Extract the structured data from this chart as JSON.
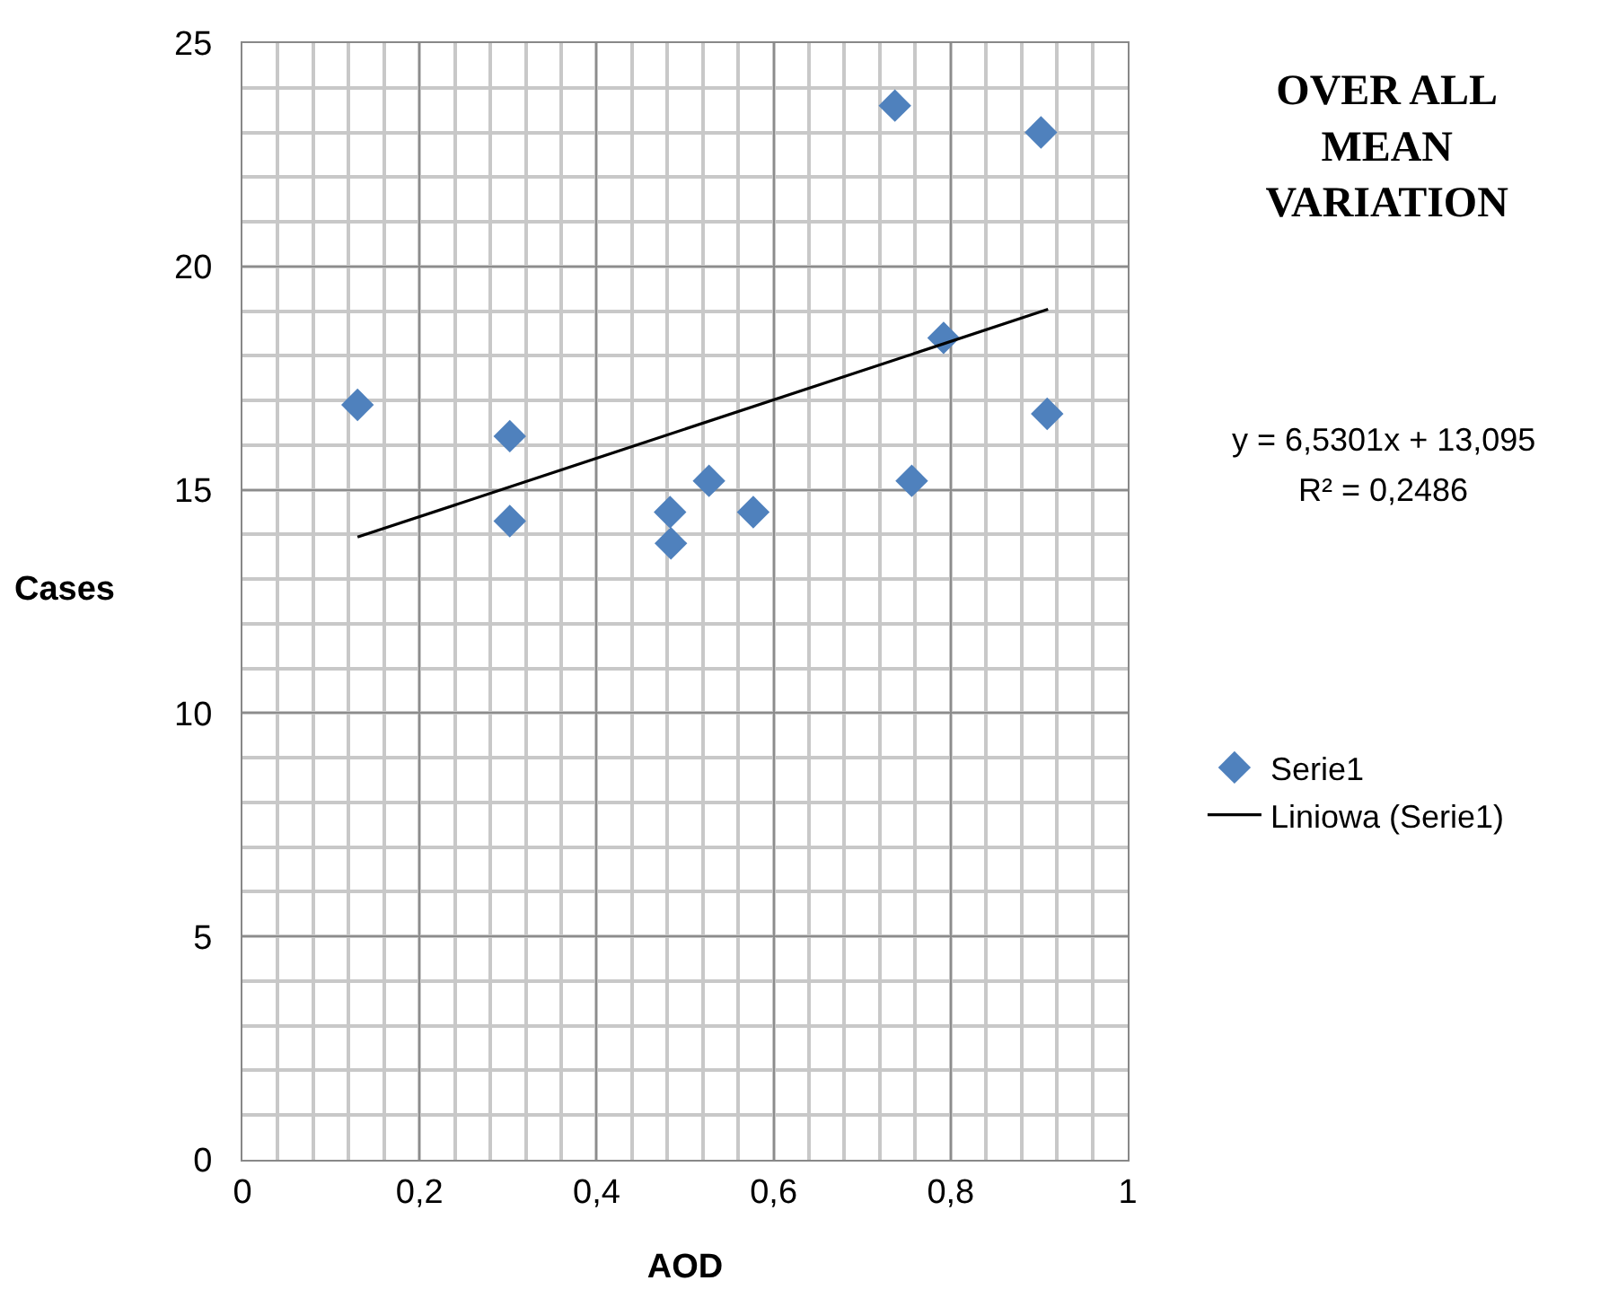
{
  "chart_data": {
    "type": "scatter",
    "title": "OVER ALL\nMEAN\nVARIATION",
    "xlabel": "AOD",
    "ylabel": "Cases",
    "annotations": [
      "y = 6,5301x + 13,095",
      "R² = 0,2486"
    ],
    "series": [
      {
        "name": "Serie1",
        "color": "#4f81bd",
        "marker": "diamond",
        "x": [
          0.13,
          0.302,
          0.302,
          0.483,
          0.484,
          0.527,
          0.577,
          0.737,
          0.902,
          0.792,
          0.909,
          0.756
        ],
        "values": [
          16.9,
          16.2,
          14.3,
          14.5,
          13.8,
          15.2,
          14.5,
          23.6,
          23.0,
          18.4,
          16.7,
          15.2
        ]
      },
      {
        "name": "Liniowa (Serie1)",
        "type": "line",
        "color": "#000000",
        "marker": "none",
        "line_style": "solid",
        "x": [
          0.13,
          0.91
        ],
        "values": [
          13.94,
          19.04
        ]
      }
    ],
    "xlim": [
      0,
      1
    ],
    "ylim": [
      0,
      25
    ],
    "xticks": [
      0,
      {
        "value": 0.2,
        "label": "0,2"
      },
      {
        "value": 0.4,
        "label": "0,4"
      },
      {
        "value": 0.6,
        "label": "0,6"
      },
      {
        "value": 0.8,
        "label": "0,8"
      },
      1
    ],
    "yticks": [
      0,
      5,
      10,
      15,
      20,
      25
    ],
    "grid": true,
    "legend": "right"
  }
}
